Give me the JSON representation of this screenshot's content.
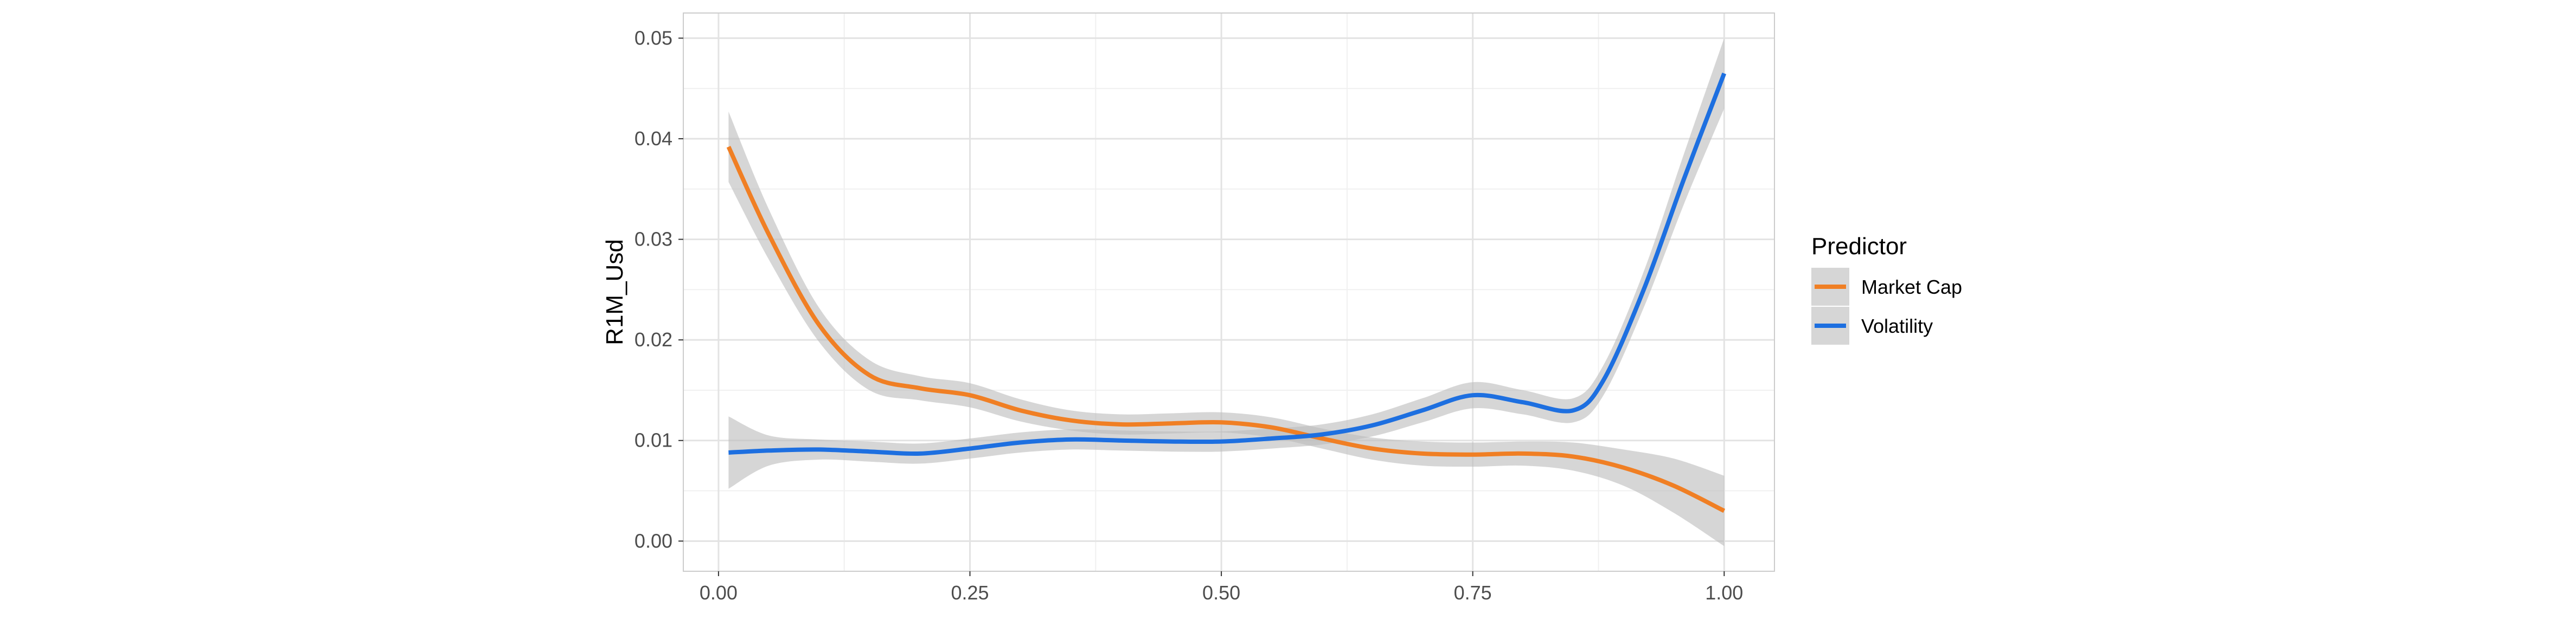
{
  "chart_data": {
    "type": "line",
    "title": "",
    "xlabel": "",
    "ylabel": "R1M_Usd",
    "xlim": [
      -0.035,
      1.05
    ],
    "ylim": [
      -0.003,
      0.0525
    ],
    "x_ticks": [
      0.0,
      0.25,
      0.5,
      0.75,
      1.0
    ],
    "x_tick_labels": [
      "0.00",
      "0.25",
      "0.50",
      "0.75",
      "1.00"
    ],
    "y_ticks": [
      0.0,
      0.01,
      0.02,
      0.03,
      0.04,
      0.05
    ],
    "y_tick_labels": [
      "0.00",
      "0.01",
      "0.02",
      "0.03",
      "0.04",
      "0.05"
    ],
    "grid": true,
    "legend": {
      "title": "Predictor",
      "position": "right"
    },
    "confidence_band_color": "#bdbdbd",
    "series": [
      {
        "name": "Market Cap",
        "color": "#f07f24",
        "x": [
          0.01,
          0.05,
          0.1,
          0.15,
          0.2,
          0.25,
          0.3,
          0.35,
          0.4,
          0.45,
          0.5,
          0.55,
          0.6,
          0.65,
          0.7,
          0.75,
          0.8,
          0.85,
          0.9,
          0.95,
          1.0
        ],
        "y": [
          0.0392,
          0.0305,
          0.0215,
          0.0165,
          0.0152,
          0.0145,
          0.013,
          0.012,
          0.0116,
          0.0117,
          0.0118,
          0.0113,
          0.0102,
          0.0092,
          0.0087,
          0.0086,
          0.0087,
          0.0084,
          0.0073,
          0.0055,
          0.003
        ],
        "lower": [
          0.0357,
          0.028,
          0.0198,
          0.015,
          0.014,
          0.0133,
          0.0119,
          0.011,
          0.0106,
          0.0107,
          0.0108,
          0.0103,
          0.0092,
          0.0081,
          0.0075,
          0.0074,
          0.0075,
          0.007,
          0.0055,
          0.0028,
          -0.0005
        ],
        "upper": [
          0.0427,
          0.033,
          0.0232,
          0.018,
          0.0164,
          0.0157,
          0.0141,
          0.013,
          0.0126,
          0.0127,
          0.0128,
          0.0123,
          0.0112,
          0.0103,
          0.0099,
          0.0098,
          0.0099,
          0.0098,
          0.0091,
          0.0082,
          0.0065
        ]
      },
      {
        "name": "Volatility",
        "color": "#1d6fe0",
        "x": [
          0.01,
          0.05,
          0.1,
          0.15,
          0.2,
          0.25,
          0.3,
          0.35,
          0.4,
          0.45,
          0.5,
          0.55,
          0.6,
          0.65,
          0.7,
          0.75,
          0.8,
          0.85,
          0.88,
          0.92,
          0.96,
          1.0
        ],
        "y": [
          0.0088,
          0.009,
          0.0091,
          0.0089,
          0.0087,
          0.0092,
          0.0098,
          0.0101,
          0.01,
          0.0099,
          0.0099,
          0.0102,
          0.0106,
          0.0115,
          0.013,
          0.0145,
          0.0138,
          0.013,
          0.016,
          0.025,
          0.036,
          0.0465
        ],
        "lower": [
          0.0052,
          0.0075,
          0.0081,
          0.0079,
          0.0077,
          0.0082,
          0.0088,
          0.0091,
          0.009,
          0.0089,
          0.0089,
          0.0092,
          0.0096,
          0.0104,
          0.0118,
          0.0132,
          0.0126,
          0.0118,
          0.0145,
          0.0232,
          0.0335,
          0.043
        ],
        "upper": [
          0.0124,
          0.0105,
          0.0101,
          0.0099,
          0.0097,
          0.0102,
          0.0108,
          0.0111,
          0.011,
          0.0109,
          0.0109,
          0.0112,
          0.0116,
          0.0126,
          0.0142,
          0.0158,
          0.015,
          0.0142,
          0.0175,
          0.0268,
          0.0385,
          0.05
        ]
      }
    ]
  }
}
